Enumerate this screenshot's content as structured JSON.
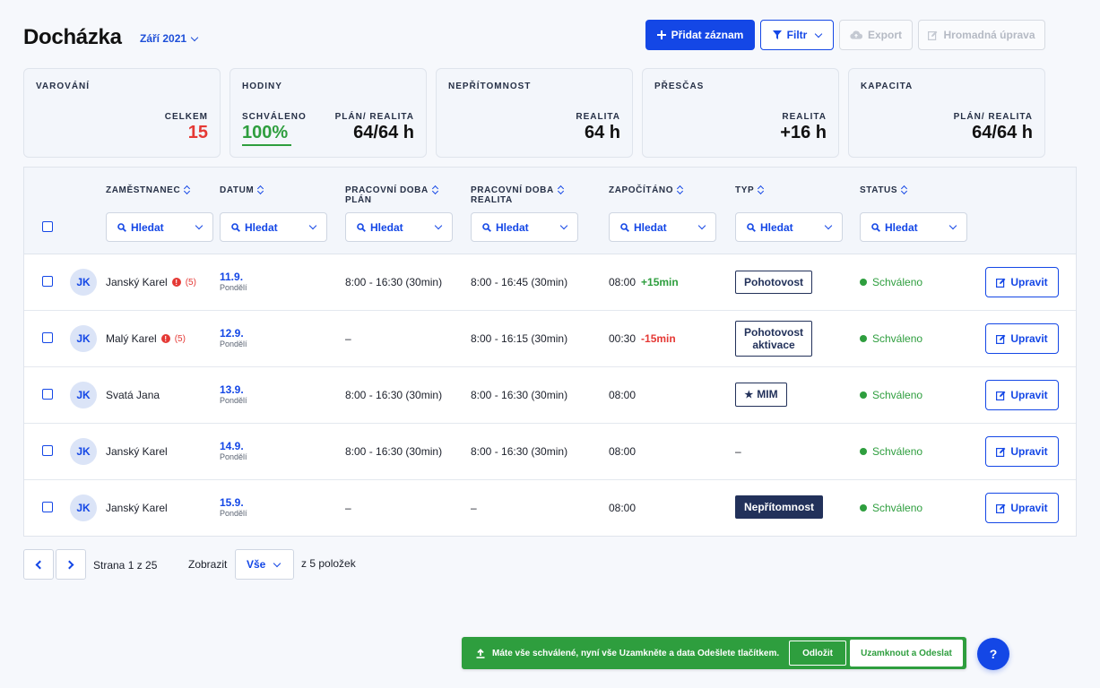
{
  "header": {
    "title": "Docházka",
    "period": "Září 2021",
    "add_label": "Přidat záznam",
    "filter_label": "Filtr",
    "export_label": "Export",
    "bulk_label": "Hromadná úprava"
  },
  "cards": {
    "warnings": {
      "title": "VAROVÁNÍ",
      "label": "CELKEM",
      "value": "15",
      "value_color": "#e53935"
    },
    "hours": {
      "title": "HODINY",
      "approved_label": "SCHVÁLENO",
      "approved_value": "100%",
      "plan_label": "PLÁN/ REALITA",
      "plan_value": "64/64 h"
    },
    "absence": {
      "title": "NEPŘÍTOMNOST",
      "label": "REALITA",
      "value": "64 h"
    },
    "overtime": {
      "title": "PŘESČAS",
      "label": "REALITA",
      "value": "+16 h"
    },
    "capacity": {
      "title": "KAPACITA",
      "label": "PLÁN/ REALITA",
      "value": "64/64 h"
    }
  },
  "table": {
    "columns": {
      "employee": "ZAMĚSTNANEC",
      "date": "DATUM",
      "plan_l1": "PRACOVNÍ DOBA",
      "plan_l2": "PLÁN",
      "real_l1": "PRACOVNÍ DOBA",
      "real_l2": "REALITA",
      "counted": "ZAPOČÍTÁNO",
      "type": "TYP",
      "status": "STATUS"
    },
    "search_placeholder": "Hledat",
    "rows": [
      {
        "initials": "JK",
        "name": "Janský Karel",
        "warn": "(5)",
        "date": "11.9.",
        "day": "Pondělí",
        "plan": "8:00 - 16:30 (30min)",
        "real": "8:00 - 16:45 (30min)",
        "counted": "08:00",
        "diff": "+15min",
        "type_l1": "Pohotovost",
        "type_l2": "",
        "status": "Schváleno",
        "edit": "Upravit"
      },
      {
        "initials": "JK",
        "name": "Malý Karel",
        "warn": "(5)",
        "date": "12.9.",
        "day": "Pondělí",
        "plan": "–",
        "real": "8:00 - 16:15 (30min)",
        "counted": "00:30",
        "diff": "-15min",
        "type_l1": "Pohotovost",
        "type_l2": "aktivace",
        "status": "Schváleno",
        "edit": "Upravit"
      },
      {
        "initials": "JK",
        "name": "Svatá Jana",
        "warn": "",
        "date": "13.9.",
        "day": "Pondělí",
        "plan": "8:00 - 16:30 (30min)",
        "real": "8:00 - 16:30 (30min)",
        "counted": "08:00",
        "diff": "",
        "type_l1": "MIM",
        "type_l2": "",
        "status": "Schváleno",
        "edit": "Upravit"
      },
      {
        "initials": "JK",
        "name": "Janský Karel",
        "warn": "",
        "date": "14.9.",
        "day": "Pondělí",
        "plan": "8:00 - 16:30 (30min)",
        "real": "8:00 - 16:30 (30min)",
        "counted": "08:00",
        "diff": "",
        "type_l1": "–",
        "type_l2": "",
        "status": "Schváleno",
        "edit": "Upravit"
      },
      {
        "initials": "JK",
        "name": "Janský Karel",
        "warn": "",
        "date": "15.9.",
        "day": "Pondělí",
        "plan": "–",
        "real": "–",
        "counted": "08:00",
        "diff": "",
        "type_l1": "Nepřítomnost",
        "type_l2": "",
        "status": "Schváleno",
        "edit": "Upravit"
      }
    ]
  },
  "pagination": {
    "page_text": "Strana 1 z 25",
    "show_label": "Zobrazit",
    "show_value": "Vše",
    "total_text": "z 5 položek"
  },
  "banner": {
    "message": "Máte vše schválené, nyní vše Uzamkněte a data Odešlete tlačítkem.",
    "postpone": "Odložit",
    "lock_send": "Uzamknout a Odeslat"
  },
  "help_label": "?",
  "colors": {
    "accent": "#1447e6",
    "success": "#2e9e3e",
    "danger": "#e53935",
    "navy": "#22315a"
  }
}
